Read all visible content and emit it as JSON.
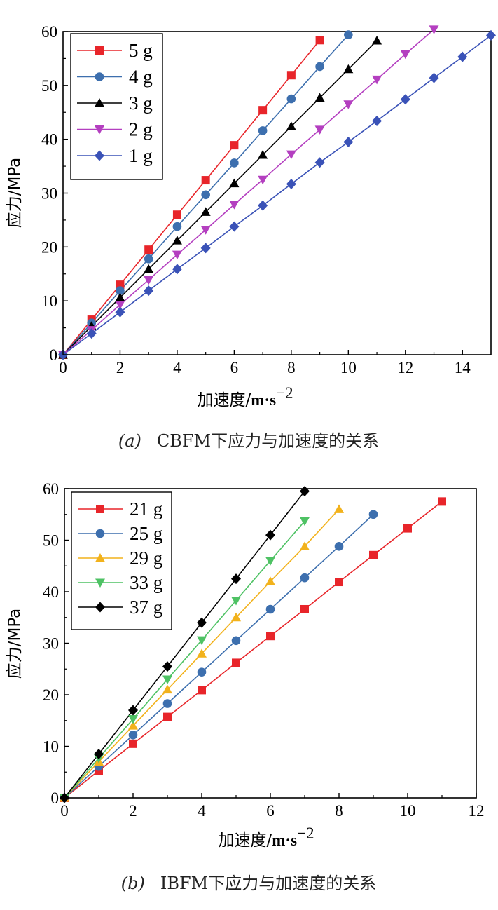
{
  "chart_data": [
    {
      "type": "line",
      "caption_label": "(a)",
      "caption": "CBFM下应力与加速度的关系",
      "xlabel_main": "加速度/",
      "xlabel_unit": "m·s",
      "xlabel_exp": "−2",
      "ylabel": "应力/MPa",
      "xlim": [
        0,
        15
      ],
      "ylim": [
        0,
        60
      ],
      "xticks": [
        0,
        2,
        4,
        6,
        8,
        10,
        12,
        14
      ],
      "yticks": [
        0,
        10,
        20,
        30,
        40,
        50,
        60
      ],
      "legend_position": "top-left",
      "series": [
        {
          "name": "5 g",
          "color": "#e8252a",
          "marker": "square",
          "x": [
            0,
            1,
            2,
            3,
            4,
            5,
            6,
            7,
            8,
            9
          ],
          "y": [
            0,
            6.5,
            13,
            19.5,
            26,
            32.4,
            38.9,
            45.4,
            51.9,
            58.4
          ]
        },
        {
          "name": "4 g",
          "color": "#3d6fae",
          "marker": "circle",
          "x": [
            0,
            1,
            2,
            3,
            4,
            5,
            6,
            7,
            8,
            9,
            10
          ],
          "y": [
            0,
            5.9,
            11.9,
            17.8,
            23.8,
            29.7,
            35.6,
            41.6,
            47.5,
            53.5,
            59.4
          ]
        },
        {
          "name": "3 g",
          "color": "#000000",
          "marker": "triangle-up",
          "x": [
            0,
            1,
            2,
            3,
            4,
            5,
            6,
            7,
            8,
            9,
            10,
            11
          ],
          "y": [
            0,
            5.3,
            10.6,
            15.9,
            21.2,
            26.5,
            31.8,
            37.1,
            42.4,
            47.7,
            53.0,
            58.3
          ]
        },
        {
          "name": "2 g",
          "color": "#b43fc0",
          "marker": "triangle-down",
          "x": [
            0,
            1,
            2,
            3,
            4,
            5,
            6,
            7,
            8,
            9,
            10,
            11,
            12,
            13
          ],
          "y": [
            0,
            4.6,
            9.3,
            13.9,
            18.6,
            23.2,
            27.9,
            32.5,
            37.2,
            41.8,
            46.5,
            51.1,
            55.8,
            60.4
          ]
        },
        {
          "name": "1 g",
          "color": "#3a52b7",
          "marker": "diamond",
          "x": [
            0,
            1,
            2,
            3,
            4,
            5,
            6,
            7,
            8,
            9,
            10,
            11,
            12,
            13,
            14,
            15
          ],
          "y": [
            0,
            3.95,
            7.9,
            11.9,
            15.9,
            19.8,
            23.8,
            27.7,
            31.7,
            35.7,
            39.5,
            43.4,
            47.4,
            51.4,
            55.3,
            59.3
          ]
        }
      ]
    },
    {
      "type": "line",
      "caption_label": "(b)",
      "caption": "IBFM下应力与加速度的关系",
      "xlabel_main": "加速度/",
      "xlabel_unit": "m·s",
      "xlabel_exp": "−2",
      "ylabel": "应力/MPa",
      "xlim": [
        0,
        12
      ],
      "ylim": [
        0,
        60
      ],
      "xticks": [
        0,
        2,
        4,
        6,
        8,
        10,
        12
      ],
      "yticks": [
        0,
        10,
        20,
        30,
        40,
        50,
        60
      ],
      "legend_position": "top-left",
      "series": [
        {
          "name": "21 g",
          "color": "#e8252a",
          "marker": "square",
          "x": [
            0,
            1,
            2,
            3,
            4,
            5,
            6,
            7,
            8,
            9,
            10,
            11
          ],
          "y": [
            0,
            5.25,
            10.5,
            15.7,
            20.9,
            26.2,
            31.4,
            36.6,
            41.9,
            47.1,
            52.3,
            57.5
          ]
        },
        {
          "name": "25 g",
          "color": "#3d6fae",
          "marker": "circle",
          "x": [
            0,
            1,
            2,
            3,
            4,
            5,
            6,
            7,
            8,
            9
          ],
          "y": [
            0,
            6.1,
            12.2,
            18.3,
            24.4,
            30.5,
            36.6,
            42.7,
            48.8,
            55.0
          ]
        },
        {
          "name": "29 g",
          "color": "#f2b21c",
          "marker": "triangle-up",
          "x": [
            0,
            1,
            2,
            3,
            4,
            5,
            6,
            7,
            8
          ],
          "y": [
            0,
            7.0,
            14.0,
            21.0,
            28.0,
            35.0,
            42.0,
            48.8,
            56.0
          ]
        },
        {
          "name": "33 g",
          "color": "#4ec264",
          "marker": "triangle-down",
          "x": [
            0,
            1,
            2,
            3,
            4,
            5,
            6,
            7
          ],
          "y": [
            0,
            7.7,
            15.3,
            23.0,
            30.6,
            38.3,
            46.0,
            53.7
          ]
        },
        {
          "name": "37 g",
          "color": "#000000",
          "marker": "diamond",
          "x": [
            0,
            1,
            2,
            3,
            4,
            5,
            6,
            7
          ],
          "y": [
            0,
            8.5,
            17.0,
            25.5,
            34.0,
            42.5,
            51.0,
            59.5
          ]
        }
      ]
    }
  ]
}
